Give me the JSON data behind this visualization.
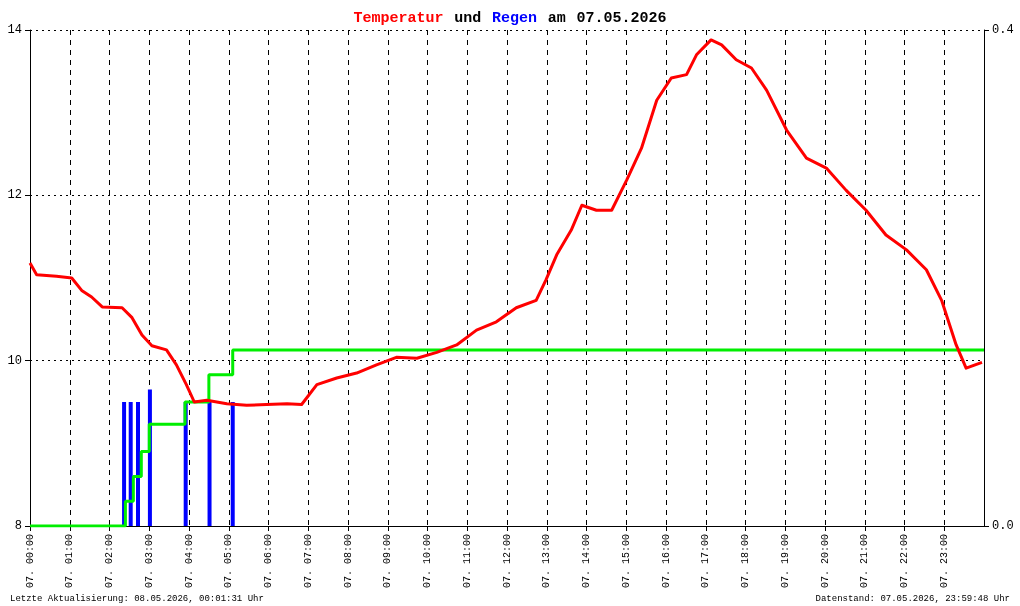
{
  "chart_data": {
    "type": "line",
    "title": "Temperatur und Regen am 07.05.2026",
    "xlim": [
      "2026-05-07T00:00",
      "2026-05-08T00:00"
    ],
    "xticks": [
      {
        "value": "2026-05-07T00:00",
        "label": "07. 00:00"
      },
      {
        "value": "2026-05-07T01:00",
        "label": "07. 01:00"
      },
      {
        "value": "2026-05-07T02:00",
        "label": "07. 02:00"
      },
      {
        "value": "2026-05-07T03:00",
        "label": "07. 03:00"
      },
      {
        "value": "2026-05-07T04:00",
        "label": "07. 04:00"
      },
      {
        "value": "2026-05-07T05:00",
        "label": "07. 05:00"
      },
      {
        "value": "2026-05-07T06:00",
        "label": "07. 06:00"
      },
      {
        "value": "2026-05-07T07:00",
        "label": "07. 07:00"
      },
      {
        "value": "2026-05-07T08:00",
        "label": "07. 08:00"
      },
      {
        "value": "2026-05-07T09:00",
        "label": "07. 09:00"
      },
      {
        "value": "2026-05-07T10:00",
        "label": "07. 10:00"
      },
      {
        "value": "2026-05-07T11:00",
        "label": "07. 11:00"
      },
      {
        "value": "2026-05-07T12:00",
        "label": "07. 12:00"
      },
      {
        "value": "2026-05-07T13:00",
        "label": "07. 13:00"
      },
      {
        "value": "2026-05-07T14:00",
        "label": "07. 14:00"
      },
      {
        "value": "2026-05-07T15:00",
        "label": "07. 15:00"
      },
      {
        "value": "2026-05-07T16:00",
        "label": "07. 16:00"
      },
      {
        "value": "2026-05-07T17:00",
        "label": "07. 17:00"
      },
      {
        "value": "2026-05-07T18:00",
        "label": "07. 18:00"
      },
      {
        "value": "2026-05-07T19:00",
        "label": "07. 19:00"
      },
      {
        "value": "2026-05-07T20:00",
        "label": "07. 20:00"
      },
      {
        "value": "2026-05-07T21:00",
        "label": "07. 21:00"
      },
      {
        "value": "2026-05-07T22:00",
        "label": "07. 22:00"
      },
      {
        "value": "2026-05-07T23:00",
        "label": "07. 23:00"
      }
    ],
    "ylim": [
      8,
      14
    ],
    "yticks": [
      8,
      10,
      12,
      14
    ],
    "y2lim": [
      0,
      0.4
    ],
    "y2ticks": [
      {
        "value": 0,
        "label": "0.0"
      },
      {
        "value": 0.4,
        "label": "0.4"
      }
    ],
    "grid": true,
    "marker": "none",
    "series": [
      {
        "color": "#ff0000",
        "x": [
          "2026-05-07T00:00",
          "2026-05-07T00:10",
          "2026-05-07T00:40",
          "2026-05-07T01:03",
          "2026-05-07T01:18",
          "2026-05-07T01:33",
          "2026-05-07T01:49",
          "2026-05-07T02:19",
          "2026-05-07T02:34",
          "2026-05-07T02:49",
          "2026-05-07T03:04",
          "2026-05-07T03:26",
          "2026-05-07T03:41",
          "2026-05-07T03:56",
          "2026-05-07T04:08",
          "2026-05-07T04:27",
          "2026-05-07T04:57",
          "2026-05-07T05:27",
          "2026-05-07T05:57",
          "2026-05-07T06:28",
          "2026-05-07T06:50",
          "2026-05-07T07:13",
          "2026-05-07T07:43",
          "2026-05-07T08:13",
          "2026-05-07T08:43",
          "2026-05-07T09:13",
          "2026-05-07T09:44",
          "2026-05-07T10:14",
          "2026-05-07T10:44",
          "2026-05-07T11:14",
          "2026-05-07T11:44",
          "2026-05-07T12:14",
          "2026-05-07T12:44",
          "2026-05-07T12:59",
          "2026-05-07T13:15",
          "2026-05-07T13:37",
          "2026-05-07T13:53",
          "2026-05-07T14:15",
          "2026-05-07T14:38",
          "2026-05-07T15:01",
          "2026-05-07T15:23",
          "2026-05-07T15:46",
          "2026-05-07T16:08",
          "2026-05-07T16:31",
          "2026-05-07T16:46",
          "2026-05-07T17:08",
          "2026-05-07T17:24",
          "2026-05-07T17:46",
          "2026-05-07T18:09",
          "2026-05-07T18:32",
          "2026-05-07T19:02",
          "2026-05-07T19:32",
          "2026-05-07T20:02",
          "2026-05-07T20:32",
          "2026-05-07T21:02",
          "2026-05-07T21:32",
          "2026-05-07T22:03",
          "2026-05-07T22:33",
          "2026-05-07T22:56",
          "2026-05-07T23:18",
          "2026-05-07T23:33",
          "2026-05-07T23:57"
        ],
        "values": [
          11.18,
          11.04,
          11.02,
          11.0,
          10.85,
          10.77,
          10.65,
          10.64,
          10.52,
          10.31,
          10.18,
          10.13,
          9.95,
          9.71,
          9.5,
          9.52,
          9.48,
          9.46,
          9.47,
          9.48,
          9.47,
          9.71,
          9.79,
          9.85,
          9.95,
          10.04,
          10.03,
          10.1,
          10.19,
          10.37,
          10.47,
          10.64,
          10.73,
          10.98,
          11.28,
          11.58,
          11.88,
          11.82,
          11.82,
          12.19,
          12.57,
          13.15,
          13.42,
          13.46,
          13.7,
          13.88,
          13.82,
          13.64,
          13.54,
          13.27,
          12.79,
          12.45,
          12.33,
          12.06,
          11.82,
          11.52,
          11.34,
          11.1,
          10.73,
          10.19,
          9.91,
          9.98
        ]
      },
      {
        "type": "bar",
        "axis": "y2",
        "color": "#0000ff",
        "x": [
          "2026-05-07T02:22",
          "2026-05-07T02:32",
          "2026-05-07T02:43",
          "2026-05-07T03:01",
          "2026-05-07T03:55",
          "2026-05-07T04:31",
          "2026-05-07T05:06"
        ],
        "values": [
          0.1,
          0.1,
          0.1,
          0.11,
          0.1,
          0.1,
          0.1
        ]
      },
      {
        "type": "step",
        "axis": "y2",
        "color": "#00ee00",
        "x": [
          "2026-05-07T00:00",
          "2026-05-07T02:24",
          "2026-05-07T02:36",
          "2026-05-07T02:48",
          "2026-05-07T03:00",
          "2026-05-07T03:54",
          "2026-05-07T04:30",
          "2026-05-07T05:06",
          "2026-05-08T00:00"
        ],
        "values": [
          0,
          0.02,
          0.04,
          0.06,
          0.082,
          0.1,
          0.122,
          0.142,
          0.142
        ]
      }
    ],
    "annotations": [
      "Letzte Aktualisierung: 08.05.2026, 00:01:31 Uhr",
      "Datenstand: 07.05.2026, 23:59:48 Uhr"
    ]
  }
}
